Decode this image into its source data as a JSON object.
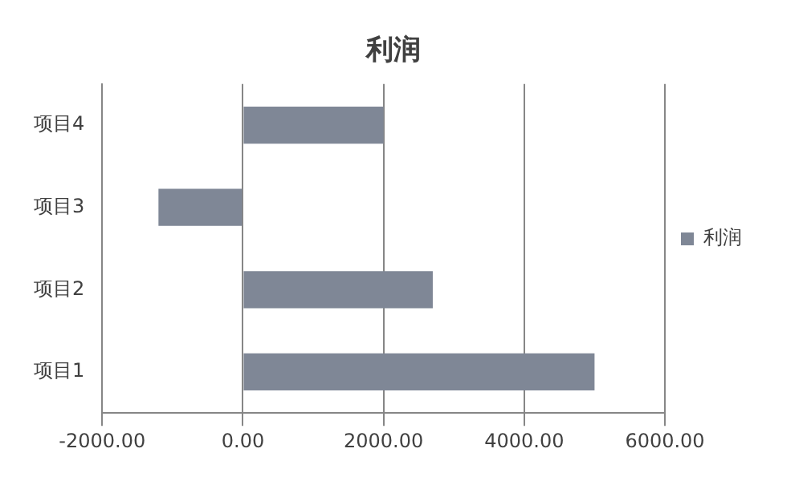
{
  "chart_data": {
    "type": "bar",
    "orientation": "horizontal",
    "title": "利润",
    "categories": [
      "项目4",
      "项目3",
      "项目2",
      "项目1"
    ],
    "series": [
      {
        "name": "利润",
        "color": "#7f8796",
        "values": [
          2000,
          -1200,
          2700,
          5000
        ]
      }
    ],
    "xlim": [
      -2000,
      6000
    ],
    "xticks": [
      {
        "value": -2000,
        "label": "-2000.00"
      },
      {
        "value": 0,
        "label": "0.00"
      },
      {
        "value": 2000,
        "label": "2000.00"
      },
      {
        "value": 4000,
        "label": "4000.00"
      },
      {
        "value": 6000,
        "label": "6000.00"
      }
    ],
    "grid": "x",
    "legend": "right"
  }
}
